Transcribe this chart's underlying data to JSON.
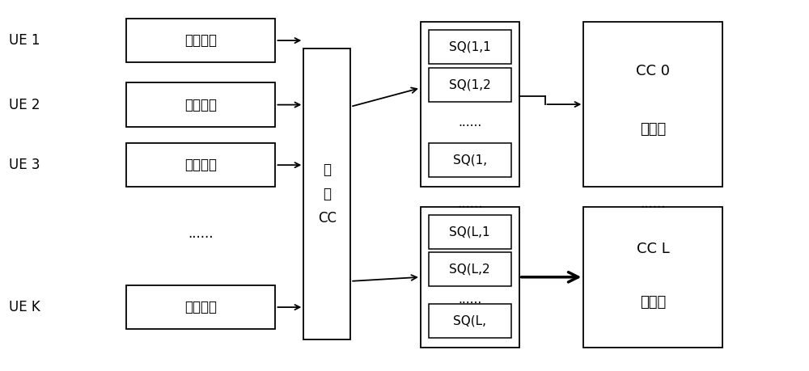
{
  "bg_color": "#ffffff",
  "text_color": "#000000",
  "ue_labels": [
    "UE 1",
    "UE 2",
    "UE 3",
    "UE K"
  ],
  "ue_dots": "......",
  "buffer_label": "数据缓存",
  "cc_alloc_lines": [
    "CC",
    "分",
    "配"
  ],
  "sq1_labels": [
    "SQ(1,1",
    "SQ(1,2",
    "......",
    "SQ(1,"
  ],
  "sqL_labels": [
    "SQ(L,1",
    "SQ(L,2",
    "......",
    "SQ(L,"
  ],
  "cc0_title": "CC 0",
  "cc0_sub": "资源池",
  "ccL_title": "CC L",
  "ccL_sub": "资源池",
  "dots": "......",
  "fs_ue": 12,
  "fs_buf": 12,
  "fs_cc": 12,
  "fs_sq": 11,
  "fs_dots": 12
}
